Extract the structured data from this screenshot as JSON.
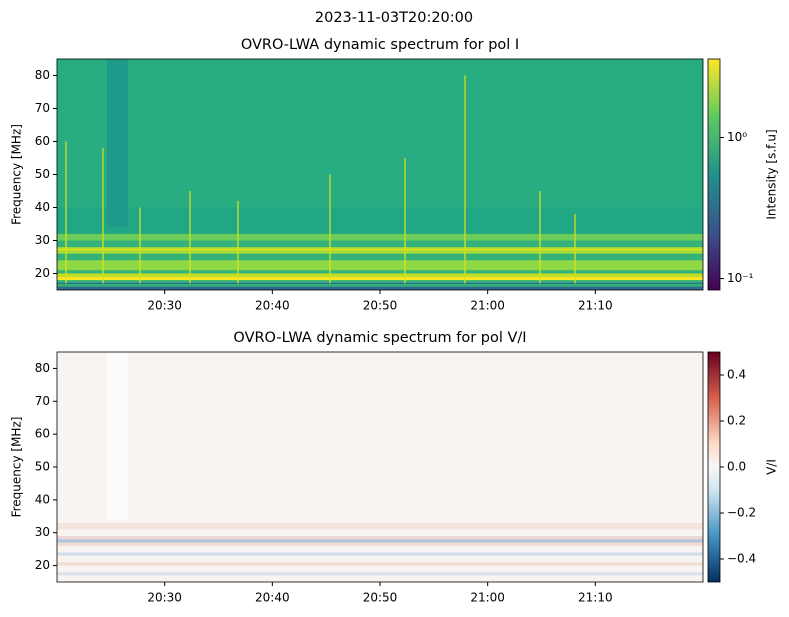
{
  "title": "2023-11-03T20:20:00",
  "chart_data": [
    {
      "type": "heatmap",
      "title": "OVRO-LWA dynamic spectrum for pol I",
      "ylabel": "Frequency [MHz]",
      "xlim": [
        "20:20",
        "21:20"
      ],
      "xticks": [
        "20:30",
        "20:40",
        "20:50",
        "21:00",
        "21:10"
      ],
      "ylim": [
        15,
        85
      ],
      "yticks": [
        20,
        30,
        40,
        50,
        60,
        70,
        80
      ],
      "colorbar": {
        "label": "Intensity [s.f.u]",
        "scale": "log",
        "colormap": "viridis",
        "lim": [
          0.083,
          3.6
        ],
        "ticks": [
          {
            "value": 1,
            "label": "10⁰"
          },
          {
            "value": 0.1,
            "label": "10⁻¹"
          }
        ]
      }
    },
    {
      "type": "heatmap",
      "title": "OVRO-LWA dynamic spectrum for pol V/I",
      "ylabel": "Frequency [MHz]",
      "xlim": [
        "20:20",
        "21:20"
      ],
      "xticks": [
        "20:30",
        "20:40",
        "20:50",
        "21:00",
        "21:10"
      ],
      "ylim": [
        15,
        85
      ],
      "yticks": [
        20,
        30,
        40,
        50,
        60,
        70,
        80
      ],
      "colorbar": {
        "label": "V/I",
        "scale": "linear",
        "colormap": "RdBu_r",
        "lim": [
          -0.5,
          0.5
        ],
        "ticks": [
          0.4,
          0.2,
          {
            "value": 0,
            "label": "0.0"
          },
          {
            "value": -0.2,
            "label": "−0.2"
          },
          {
            "value": -0.4,
            "label": "−0.4"
          }
        ]
      }
    }
  ]
}
